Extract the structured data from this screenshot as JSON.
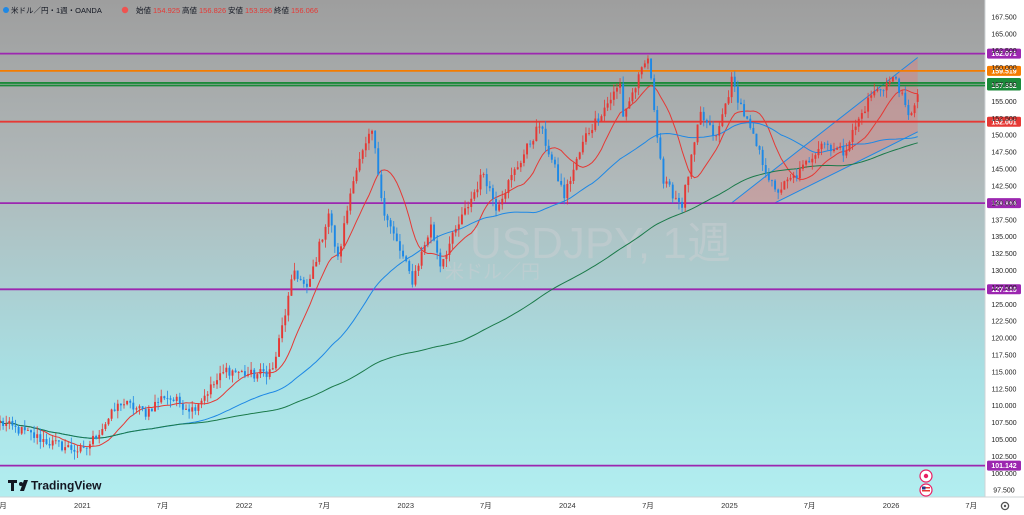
{
  "chart_data": {
    "type": "candlestick",
    "header": {
      "symbol": "米ドル／円・1週・OANDA",
      "open_label": "始値",
      "open": "154.925",
      "high_label": "高値",
      "high": "156.826",
      "low_label": "安値",
      "low": "153.996",
      "close_label": "終値",
      "close": "156.066"
    },
    "watermark": {
      "title": "USDJPY, 1週",
      "subtitle": "米ドル／円"
    },
    "y_axis": {
      "range": [
        96.5,
        170.0
      ],
      "ticks": [
        "167.500",
        "165.000",
        "162.500",
        "160.000",
        "157.500",
        "155.000",
        "152.500",
        "150.000",
        "147.500",
        "145.000",
        "142.500",
        "140.000",
        "137.500",
        "135.000",
        "132.500",
        "130.000",
        "127.500",
        "125.000",
        "122.500",
        "120.000",
        "117.500",
        "115.000",
        "112.500",
        "110.000",
        "107.500",
        "105.000",
        "102.500",
        "100.000",
        "97.500"
      ]
    },
    "x_axis": {
      "range": [
        "2020-06-29",
        "2026-08-01"
      ],
      "ticks": [
        {
          "label": "7月",
          "date": "2020-07-01"
        },
        {
          "label": "2021",
          "date": "2021-01-01"
        },
        {
          "label": "7月",
          "date": "2021-07-01"
        },
        {
          "label": "2022",
          "date": "2022-01-01"
        },
        {
          "label": "7月",
          "date": "2022-07-01"
        },
        {
          "label": "2023",
          "date": "2023-01-01"
        },
        {
          "label": "7月",
          "date": "2023-07-01"
        },
        {
          "label": "2024",
          "date": "2024-01-01"
        },
        {
          "label": "7月",
          "date": "2024-07-01"
        },
        {
          "label": "2025",
          "date": "2025-01-01"
        },
        {
          "label": "7月",
          "date": "2025-07-01"
        },
        {
          "label": "2026",
          "date": "2026-01-01"
        },
        {
          "label": "7月",
          "date": "2026-07-01"
        }
      ]
    },
    "horizontal_levels": [
      {
        "value": "162.071",
        "color": "#9c27b0"
      },
      {
        "value": "159.519",
        "color": "#f57c00"
      },
      {
        "value": "157.734",
        "color": "#1b8a3a"
      },
      {
        "value": "157.352",
        "color": "#1b8a3a"
      },
      {
        "value": "152.001",
        "color": "#e53935"
      },
      {
        "value": "139.964",
        "color": "#9c27b0"
      },
      {
        "value": "127.215",
        "color": "#9c27b0"
      },
      {
        "value": "101.142",
        "color": "#9c27b0"
      }
    ],
    "anchors": [
      [
        "2020-06-29",
        107.5
      ],
      [
        "2020-10-26",
        104.4
      ],
      [
        "2021-01-04",
        103.2
      ],
      [
        "2021-03-29",
        110.5
      ],
      [
        "2021-05-24",
        109.0
      ],
      [
        "2021-07-05",
        111.5
      ],
      [
        "2021-09-06",
        109.5
      ],
      [
        "2021-11-22",
        115.3
      ],
      [
        "2022-01-24",
        114.5
      ],
      [
        "2022-03-07",
        115.3
      ],
      [
        "2022-04-25",
        130.0
      ],
      [
        "2022-05-23",
        127.0
      ],
      [
        "2022-07-11",
        138.5
      ],
      [
        "2022-08-01",
        131.5
      ],
      [
        "2022-09-05",
        144.0
      ],
      [
        "2022-10-17",
        150.5
      ],
      [
        "2022-11-14",
        138.5
      ],
      [
        "2023-01-16",
        128.5
      ],
      [
        "2023-02-27",
        136.5
      ],
      [
        "2023-03-20",
        131.0
      ],
      [
        "2023-06-26",
        144.5
      ],
      [
        "2023-07-24",
        139.5
      ],
      [
        "2023-10-30",
        151.5
      ],
      [
        "2023-12-25",
        141.0
      ],
      [
        "2024-02-12",
        150.0
      ],
      [
        "2024-04-29",
        157.5
      ],
      [
        "2024-05-06",
        153.0
      ],
      [
        "2024-07-01",
        161.5
      ],
      [
        "2024-08-05",
        143.0
      ],
      [
        "2024-09-16",
        139.8
      ],
      [
        "2024-10-28",
        153.0
      ],
      [
        "2024-12-02",
        149.5
      ],
      [
        "2025-01-06",
        158.0
      ],
      [
        "2025-02-24",
        149.5
      ],
      [
        "2025-04-14",
        141.5
      ],
      [
        "2025-06-09",
        144.5
      ],
      [
        "2025-07-28",
        149.0
      ],
      [
        "2025-09-15",
        147.5
      ],
      [
        "2025-11-17",
        156.0
      ],
      [
        "2026-01-12",
        158.5
      ],
      [
        "2026-02-09",
        152.5
      ],
      [
        "2026-02-23",
        154.9
      ]
    ],
    "last_candle": {
      "date": "2026-03-02",
      "open": 154.925,
      "high": 156.826,
      "low": 153.996,
      "close": 156.066
    },
    "moving_averages": [
      {
        "color": "#e53935",
        "period": 13
      },
      {
        "color": "#1e88e5",
        "period": 52
      },
      {
        "color": "#1b7a4a",
        "period": 150
      }
    ],
    "channel": {
      "color": "#1e88e5",
      "fill": "rgba(229,115,115,0.35)",
      "lower": [
        [
          "2025-04-14",
          140.0
        ],
        [
          "2026-03-02",
          150.5
        ]
      ],
      "upper": [
        [
          "2025-01-06",
          140.0
        ],
        [
          "2026-03-02",
          161.5
        ]
      ]
    },
    "colors": {
      "up": "#e53935",
      "down": "#1e88e5",
      "bg_top": "#9e9e9e",
      "bg_bottom": "#b2eef0"
    },
    "logo": "TradingView",
    "settings_icon": "gear-icon",
    "flag_icons": [
      "calendar-event-icon",
      "us-flag-icon"
    ]
  }
}
